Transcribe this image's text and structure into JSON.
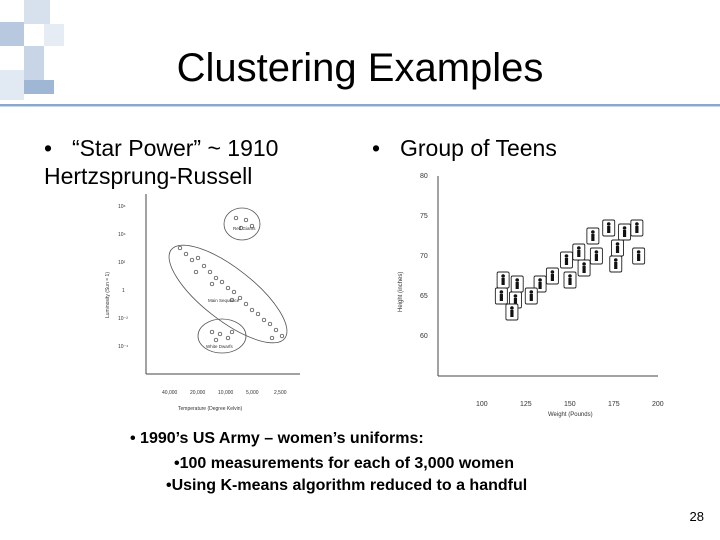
{
  "slide": {
    "title": "Clustering Examples",
    "bullet_left": "“Star Power” ~ 1910 Hertzsprung-Russell",
    "bullet_right": "Group of Teens",
    "notes": [
      "• 1990’s US Army – women’s uniforms:",
      "•100 measurements for each of 3,000 women",
      "•Using K-means algorithm reduced to a handful"
    ],
    "page_number": "28"
  },
  "hr_diagram": {
    "xlabel": "Temperature (Degree Kelvin)",
    "ylabel": "Luminosity (Sun = 1)",
    "x_ticks": [
      "40,000",
      "20,000",
      "10,000",
      "5,000",
      "2,500"
    ],
    "y_ticks": [
      "10⁶",
      "10⁴",
      "10²",
      "1",
      "10⁻²",
      "10⁻⁴"
    ],
    "cluster_labels": [
      "Red Giants",
      "Main Sequence",
      "White Dwarfs"
    ]
  },
  "chart_data": {
    "type": "scatter",
    "xlabel": "Weight (Pounds)",
    "ylabel": "Height (inches)",
    "x_ticks": [
      100,
      125,
      150,
      175,
      200
    ],
    "y_ticks": [
      60,
      65,
      70,
      75,
      80
    ],
    "xlim": [
      75,
      200
    ],
    "ylim": [
      55,
      80
    ],
    "points": [
      {
        "x": 172,
        "y": 73.5
      },
      {
        "x": 181,
        "y": 73
      },
      {
        "x": 188,
        "y": 73.5
      },
      {
        "x": 163,
        "y": 72.5
      },
      {
        "x": 177,
        "y": 71
      },
      {
        "x": 189,
        "y": 70
      },
      {
        "x": 155,
        "y": 70.5
      },
      {
        "x": 165,
        "y": 70
      },
      {
        "x": 176,
        "y": 69
      },
      {
        "x": 148,
        "y": 69.5
      },
      {
        "x": 158,
        "y": 68.5
      },
      {
        "x": 140,
        "y": 67.5
      },
      {
        "x": 150,
        "y": 67
      },
      {
        "x": 112,
        "y": 67
      },
      {
        "x": 120,
        "y": 66.5
      },
      {
        "x": 133,
        "y": 66.5
      },
      {
        "x": 111,
        "y": 65
      },
      {
        "x": 119,
        "y": 64.5
      },
      {
        "x": 128,
        "y": 65
      },
      {
        "x": 117,
        "y": 63
      }
    ]
  }
}
